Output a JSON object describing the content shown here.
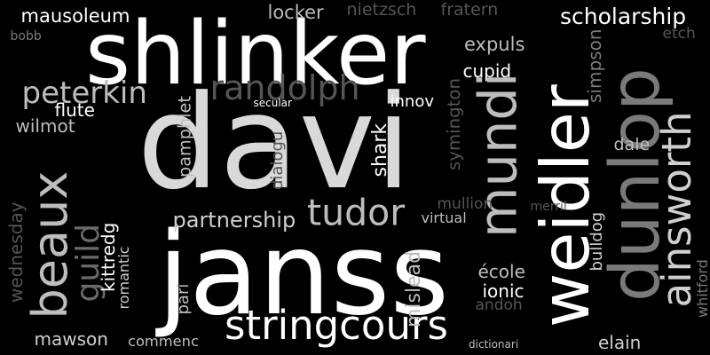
{
  "words": [
    {
      "text": "davi",
      "color": "#d9d9d9"
    },
    {
      "text": "janss",
      "color": "#ffffff"
    },
    {
      "text": "shlinker",
      "color": "#ffffff"
    },
    {
      "text": "weidler",
      "color": "#ffffff"
    },
    {
      "text": "dunlop",
      "color": "#7a7a7a"
    },
    {
      "text": "mundi",
      "color": "#bdbdbd"
    },
    {
      "text": "beaux",
      "color": "#bdbdbd"
    },
    {
      "text": "ainsworth",
      "color": "#cfcfcf"
    },
    {
      "text": "stringcours",
      "color": "#ffffff"
    },
    {
      "text": "tudor",
      "color": "#bdbdbd"
    },
    {
      "text": "randolph",
      "color": "#555555"
    },
    {
      "text": "guild",
      "color": "#6a6a6a"
    },
    {
      "text": "peterkin",
      "color": "#bdbdbd"
    },
    {
      "text": "scholarship",
      "color": "#ffffff"
    },
    {
      "text": "partnership",
      "color": "#cfcfcf"
    },
    {
      "text": "mausoleum",
      "color": "#ffffff"
    },
    {
      "text": "locker",
      "color": "#bdbdbd"
    },
    {
      "text": "nietzsch",
      "color": "#555555"
    },
    {
      "text": "fratern",
      "color": "#555555"
    },
    {
      "text": "expuls",
      "color": "#bdbdbd"
    },
    {
      "text": "cupid",
      "color": "#ffffff"
    },
    {
      "text": "innov",
      "color": "#ffffff"
    },
    {
      "text": "flute",
      "color": "#ffffff"
    },
    {
      "text": "wilmot",
      "color": "#bdbdbd"
    },
    {
      "text": "bobb",
      "color": "#7a7a7a"
    },
    {
      "text": "etch",
      "color": "#555555"
    },
    {
      "text": "secular",
      "color": "#ffffff"
    },
    {
      "text": "simpson",
      "color": "#7a7a7a"
    },
    {
      "text": "symington",
      "color": "#555555"
    },
    {
      "text": "shark",
      "color": "#ffffff"
    },
    {
      "text": "pamphlet",
      "color": "#bdbdbd"
    },
    {
      "text": "dialogu",
      "color": "#555555"
    },
    {
      "text": "dale",
      "color": "#bdbdbd"
    },
    {
      "text": "mullion",
      "color": "#555555"
    },
    {
      "text": "virtual",
      "color": "#bdbdbd"
    },
    {
      "text": "merril",
      "color": "#555555"
    },
    {
      "text": "wednesday",
      "color": "#555555"
    },
    {
      "text": "kittredg",
      "color": "#ffffff"
    },
    {
      "text": "romantic",
      "color": "#cfcfcf"
    },
    {
      "text": "pari",
      "color": "#bdbdbd"
    },
    {
      "text": "mislead",
      "color": "#bdbdbd"
    },
    {
      "text": "école",
      "color": "#bdbdbd"
    },
    {
      "text": "ionic",
      "color": "#ffffff"
    },
    {
      "text": "andoh",
      "color": "#555555"
    },
    {
      "text": "bulldog",
      "color": "#cfcfcf"
    },
    {
      "text": "whitford",
      "color": "#7a7a7a"
    },
    {
      "text": "mawson",
      "color": "#cfcfcf"
    },
    {
      "text": "commenc",
      "color": "#bdbdbd"
    },
    {
      "text": "dictionari",
      "color": "#bdbdbd"
    },
    {
      "text": "elain",
      "color": "#cfcfcf"
    }
  ]
}
